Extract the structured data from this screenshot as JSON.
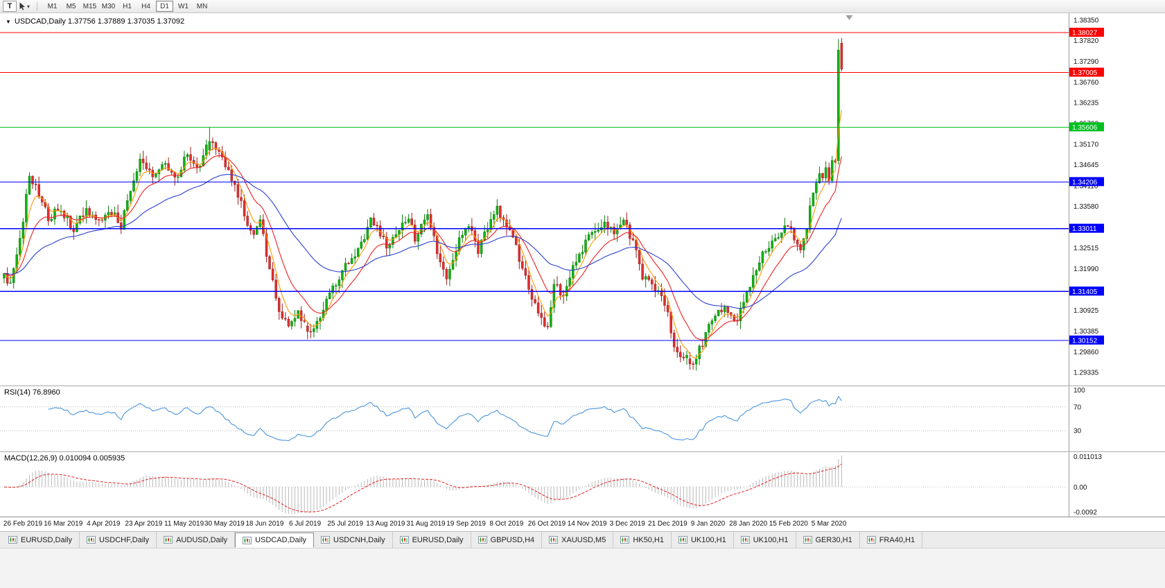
{
  "toolbar": {
    "tool_button_label": "T",
    "dropdown_caret": "▾",
    "timeframes": [
      "M1",
      "M5",
      "M15",
      "M30",
      "H1",
      "H4",
      "D1",
      "W1",
      "MN"
    ],
    "active_timeframe": "D1"
  },
  "chart": {
    "collapse_icon": "▼",
    "title_line": "USDCAD,Daily 1.37756 1.37889 1.37035 1.37092",
    "symbol": "USDCAD",
    "period": "Daily",
    "colors": {
      "up": "#12B212",
      "up_stroke": "#0B7C0B",
      "down": "#E03030",
      "down_stroke": "#9A1A1A",
      "background": "#FFFFFF",
      "axis_text": "#111111"
    },
    "y_axis": {
      "min": 1.2905,
      "max": 1.3847,
      "ticks": [
        "1.38350",
        "1.37820",
        "1.37290",
        "1.36760",
        "1.36235",
        "1.35700",
        "1.35170",
        "1.34645",
        "1.34110",
        "1.33580",
        "1.33050",
        "1.32515",
        "1.31990",
        "1.31460",
        "1.30925",
        "1.30385",
        "1.29860",
        "1.29335"
      ]
    }
  },
  "chart_data": {
    "type": "candlestick",
    "symbol": "USDCAD",
    "timeframe": "Daily",
    "num_candles": 266,
    "last_candle": {
      "open": 1.37756,
      "high": 1.37889,
      "low": 1.37035,
      "close": 1.37092
    },
    "close_path_anchors": [
      [
        0,
        1.3185
      ],
      [
        2,
        1.3155
      ],
      [
        5,
        1.327
      ],
      [
        8,
        1.3442
      ],
      [
        11,
        1.3385
      ],
      [
        14,
        1.333
      ],
      [
        18,
        1.3352
      ],
      [
        22,
        1.3295
      ],
      [
        26,
        1.3352
      ],
      [
        30,
        1.3325
      ],
      [
        34,
        1.3345
      ],
      [
        37,
        1.331
      ],
      [
        40,
        1.34
      ],
      [
        43,
        1.3482
      ],
      [
        47,
        1.344
      ],
      [
        51,
        1.3465
      ],
      [
        54,
        1.3428
      ],
      [
        58,
        1.349
      ],
      [
        61,
        1.3448
      ],
      [
        64,
        1.3508
      ],
      [
        65,
        1.3524
      ],
      [
        68,
        1.3488
      ],
      [
        71,
        1.3452
      ],
      [
        74,
        1.3392
      ],
      [
        77,
        1.3308
      ],
      [
        79,
        1.3282
      ],
      [
        81,
        1.3332
      ],
      [
        84,
        1.3195
      ],
      [
        87,
        1.3098
      ],
      [
        90,
        1.3052
      ],
      [
        93,
        1.3082
      ],
      [
        96,
        1.3038
      ],
      [
        99,
        1.3062
      ],
      [
        102,
        1.3118
      ],
      [
        105,
        1.3165
      ],
      [
        109,
        1.3218
      ],
      [
        113,
        1.3262
      ],
      [
        116,
        1.3318
      ],
      [
        118,
        1.3302
      ],
      [
        121,
        1.3252
      ],
      [
        125,
        1.3302
      ],
      [
        128,
        1.333
      ],
      [
        130,
        1.3272
      ],
      [
        132,
        1.3312
      ],
      [
        134,
        1.3338
      ],
      [
        137,
        1.3242
      ],
      [
        140,
        1.3172
      ],
      [
        144,
        1.3272
      ],
      [
        147,
        1.3308
      ],
      [
        150,
        1.3248
      ],
      [
        153,
        1.3302
      ],
      [
        156,
        1.3352
      ],
      [
        158,
        1.3328
      ],
      [
        161,
        1.3288
      ],
      [
        164,
        1.3198
      ],
      [
        167,
        1.3128
      ],
      [
        170,
        1.3068
      ],
      [
        172,
        1.3042
      ],
      [
        174,
        1.3158
      ],
      [
        177,
        1.3132
      ],
      [
        180,
        1.3208
      ],
      [
        183,
        1.3248
      ],
      [
        186,
        1.3292
      ],
      [
        189,
        1.3312
      ],
      [
        193,
        1.3295
      ],
      [
        196,
        1.3322
      ],
      [
        199,
        1.3268
      ],
      [
        202,
        1.3175
      ],
      [
        205,
        1.3162
      ],
      [
        208,
        1.3122
      ],
      [
        210,
        1.3078
      ],
      [
        212,
        1.2992
      ],
      [
        214,
        1.2962
      ],
      [
        216,
        1.2978
      ],
      [
        218,
        1.2952
      ],
      [
        220,
        1.299
      ],
      [
        222,
        1.3032
      ],
      [
        225,
        1.3078
      ],
      [
        228,
        1.3098
      ],
      [
        231,
        1.3058
      ],
      [
        234,
        1.3106
      ],
      [
        237,
        1.3182
      ],
      [
        240,
        1.3235
      ],
      [
        243,
        1.3262
      ],
      [
        246,
        1.3295
      ],
      [
        248,
        1.3312
      ],
      [
        250,
        1.3282
      ],
      [
        252,
        1.3252
      ],
      [
        254,
        1.3308
      ],
      [
        256,
        1.3392
      ],
      [
        258,
        1.3448
      ],
      [
        259,
        1.3422
      ],
      [
        260,
        1.3458
      ],
      [
        261,
        1.3432
      ],
      [
        262,
        1.3468
      ],
      [
        263,
        1.3478
      ]
    ],
    "explicit_candles": [
      {
        "i": 65,
        "o": 1.3502,
        "h": 1.356,
        "l": 1.3488,
        "c": 1.3524
      },
      {
        "i": 96,
        "o": 1.3052,
        "h": 1.3064,
        "l": 1.3018,
        "c": 1.3038
      },
      {
        "i": 217,
        "o": 1.2968,
        "h": 1.2985,
        "l": 1.294,
        "c": 1.2955
      },
      {
        "i": 264,
        "o": 1.3475,
        "h": 1.3786,
        "l": 1.3465,
        "c": 1.3758
      },
      {
        "i": 265,
        "o": 1.37756,
        "h": 1.37889,
        "l": 1.37035,
        "c": 1.37092
      }
    ],
    "date_labels": [
      "26 Feb 2019",
      "16 Mar 2019",
      "4 Apr 2019",
      "23 Apr 2019",
      "11 May 2019",
      "30 May 2019",
      "18 Jun 2019",
      "6 Jul 2019",
      "25 Jul 2019",
      "13 Aug 2019",
      "31 Aug 2019",
      "19 Sep 2019",
      "8 Oct 2019",
      "26 Oct 2019",
      "14 Nov 2019",
      "3 Dec 2019",
      "21 Dec 2019",
      "9 Jan 2020",
      "28 Jan 2020",
      "15 Feb 2020",
      "5 Mar 2020"
    ],
    "moving_averages": [
      {
        "period": 5,
        "color": "#FF9900"
      },
      {
        "period": 13,
        "color": "#EE2020"
      },
      {
        "period": 40,
        "color": "#2A3FD0"
      }
    ],
    "horizontal_lines": [
      {
        "price": 1.38027,
        "label": "1.38027",
        "color": "#FF0000"
      },
      {
        "price": 1.37005,
        "label": "1.37005",
        "color": "#FF0000"
      },
      {
        "price": 1.35606,
        "label": "1.35606",
        "color": "#00C020"
      },
      {
        "price": 1.34206,
        "label": "1.34206",
        "color": "#0000FF"
      },
      {
        "price": 1.33011,
        "label": "1.33011",
        "color": "#0000FF"
      },
      {
        "price": 1.31405,
        "label": "1.31405",
        "color": "#0000FF"
      },
      {
        "price": 1.30152,
        "label": "1.30152",
        "color": "#0000FF"
      }
    ],
    "indicators": {
      "rsi": {
        "label": "RSI(14) 76.8960",
        "period": 14,
        "levels": [
          100,
          70,
          30
        ],
        "color": "#4A95DB"
      },
      "macd": {
        "label": "MACD(12,26,9) 0.010094 0.005935",
        "fast": 12,
        "slow": 26,
        "signal": 9,
        "axis_labels": [
          "0.011013",
          "0.00",
          "-0.0092"
        ],
        "range": [
          -0.0092,
          0.011013
        ],
        "histogram_color": "#B8B8B8",
        "signal_color": "#E02020"
      }
    }
  },
  "tabs": {
    "active_index": 3,
    "items": [
      "EURUSD,Daily",
      "USDCHF,Daily",
      "AUDUSD,Daily",
      "USDCAD,Daily",
      "USDCNH,Daily",
      "EURUSD,Daily",
      "GBPUSD,H4",
      "XAUUSD,M5",
      "HK50,H1",
      "UK100,H1",
      "UK100,H1",
      "GER30,H1",
      "FRA40,H1"
    ]
  }
}
